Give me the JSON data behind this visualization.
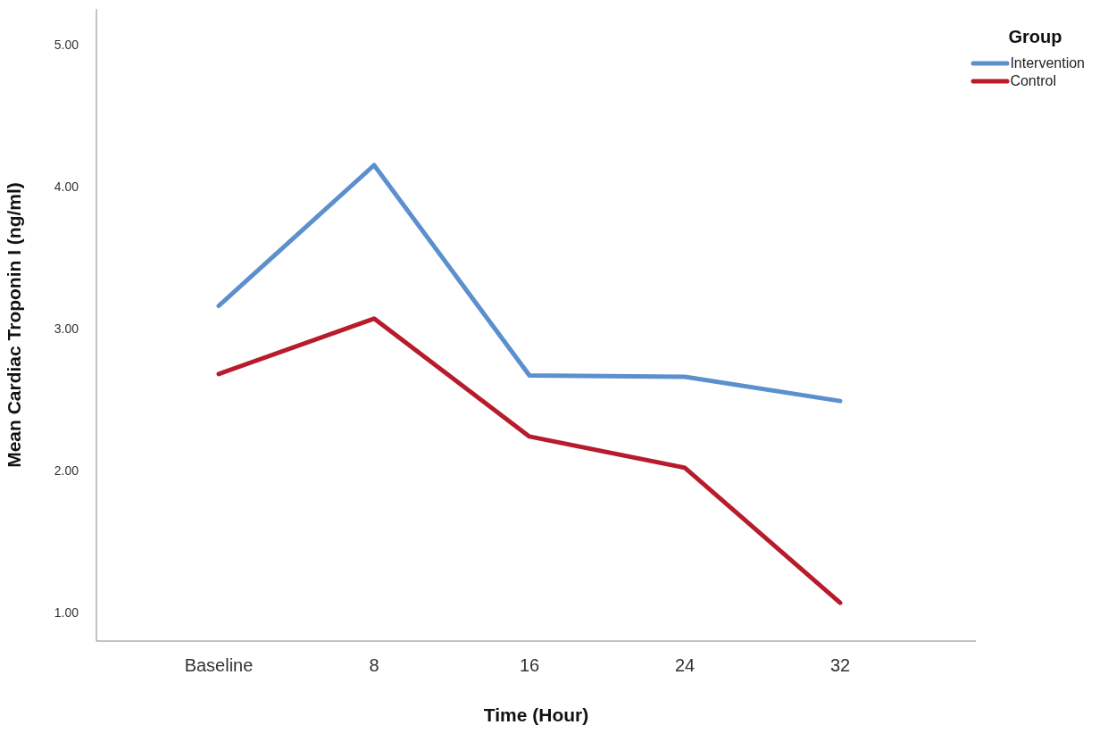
{
  "chart_data": {
    "type": "line",
    "xlabel": "Time (Hour)",
    "ylabel": "Mean Cardiac Troponin I (ng/ml)",
    "legend_title": "Group",
    "legend": "top right",
    "categories": [
      "Baseline",
      "8",
      "16",
      "24",
      "32"
    ],
    "ylim": [
      0.8,
      5.25
    ],
    "yticks": [
      {
        "value": 1,
        "label": "1.00"
      },
      {
        "value": 2,
        "label": "2.00"
      },
      {
        "value": 3,
        "label": "3.00"
      },
      {
        "value": 4,
        "label": "4.00"
      },
      {
        "value": 5,
        "label": "5.00"
      }
    ],
    "grid": false,
    "marker": "none",
    "line_style": "solid",
    "series": [
      {
        "name": "Intervention",
        "color": "#5b8fce",
        "values": [
          3.16,
          4.15,
          2.67,
          2.66,
          2.49
        ]
      },
      {
        "name": "Control",
        "color": "#b71c2c",
        "values": [
          2.68,
          3.07,
          2.24,
          2.02,
          1.07
        ]
      }
    ]
  }
}
